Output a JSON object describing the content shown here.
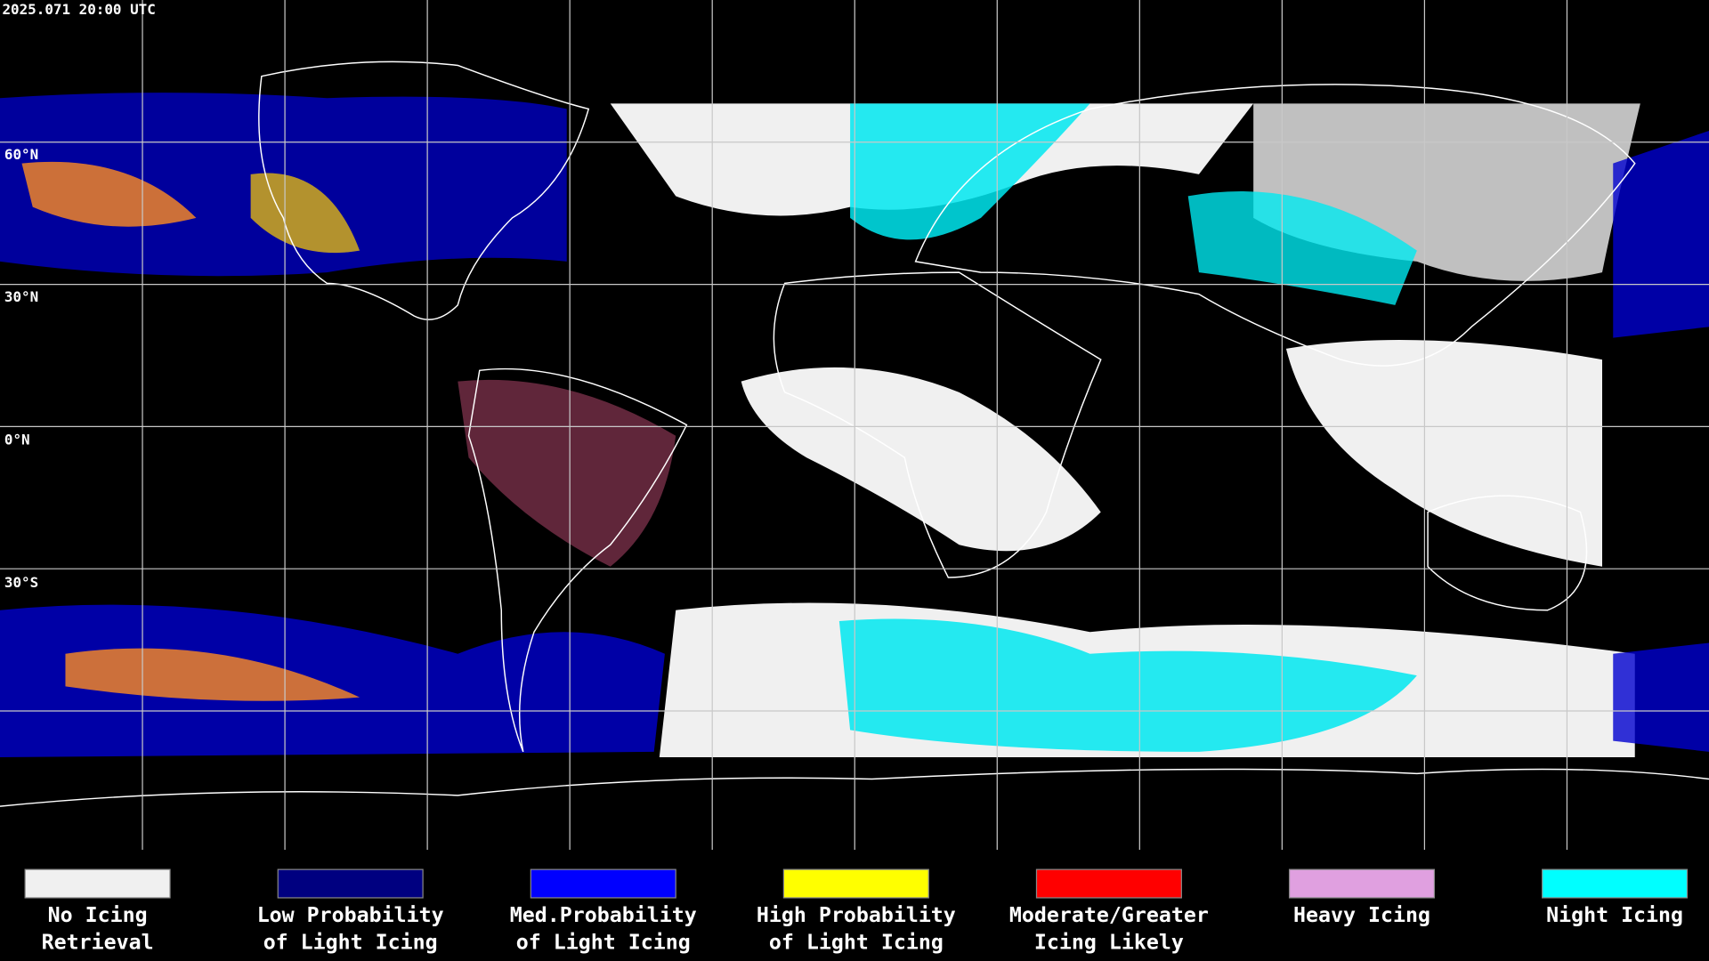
{
  "header": {
    "timestamp": "2025.071 20:00 UTC"
  },
  "map": {
    "latitude_labels": [
      "60°N",
      "30°N",
      "0°N",
      "30°S"
    ]
  },
  "legend": {
    "items": [
      {
        "lines": [
          "No Icing",
          "Retrieval"
        ],
        "color": "#f0f0f0"
      },
      {
        "lines": [
          "Low Probability",
          "of Light Icing"
        ],
        "color": "#000080"
      },
      {
        "lines": [
          "Med.Probability",
          "of Light Icing"
        ],
        "color": "#0000ff"
      },
      {
        "lines": [
          "High Probability",
          "of Light Icing"
        ],
        "color": "#ffff00"
      },
      {
        "lines": [
          "Moderate/Greater",
          "Icing Likely"
        ],
        "color": "#ff0000"
      },
      {
        "lines": [
          "Heavy Icing"
        ],
        "color": "#e0a0e0"
      },
      {
        "lines": [
          "Night Icing"
        ],
        "color": "#00ffff"
      }
    ]
  }
}
